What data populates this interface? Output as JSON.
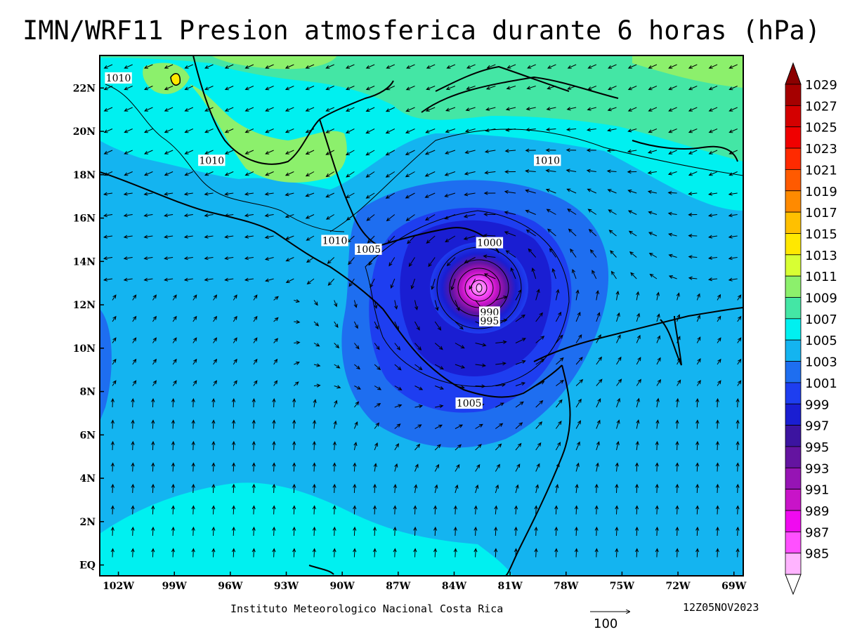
{
  "title": "IMN/WRF11 Presion atmosferica durante 6 horas (hPa)",
  "credit": "Instituto Meteorologico Nacional Costa Rica",
  "datestamp": "12Z05NOV2023",
  "vector_reference": "100",
  "axes": {
    "lon_labels": [
      "102W",
      "99W",
      "96W",
      "93W",
      "90W",
      "87W",
      "84W",
      "81W",
      "78W",
      "75W",
      "72W",
      "69W"
    ],
    "lon_values": [
      -102,
      -99,
      -96,
      -93,
      -90,
      -87,
      -84,
      -81,
      -78,
      -75,
      -72,
      -69
    ],
    "lat_labels": [
      "22N",
      "20N",
      "18N",
      "16N",
      "14N",
      "12N",
      "10N",
      "8N",
      "6N",
      "4N",
      "2N",
      "EQ"
    ],
    "lat_values": [
      22,
      20,
      18,
      16,
      14,
      12,
      10,
      8,
      6,
      4,
      2,
      0
    ],
    "lon_range": [
      -103.0,
      -68.5
    ],
    "lat_range": [
      -0.5,
      23.5
    ]
  },
  "colorbar": {
    "labels": [
      "1029",
      "1027",
      "1025",
      "1023",
      "1021",
      "1019",
      "1017",
      "1015",
      "1013",
      "1011",
      "1009",
      "1007",
      "1005",
      "1003",
      "1001",
      "999",
      "997",
      "995",
      "993",
      "991",
      "989",
      "987",
      "985"
    ],
    "colors": [
      "#a50000",
      "#d40000",
      "#f00000",
      "#ff2a00",
      "#ff5a00",
      "#ff8a00",
      "#ffc000",
      "#ffe800",
      "#d8ff33",
      "#8cf06c",
      "#44e6a5",
      "#00f0f0",
      "#14b4f0",
      "#1e6ef0",
      "#1e3ef0",
      "#1a1ed2",
      "#3c14a0",
      "#6414a0",
      "#9614b4",
      "#c814c8",
      "#f00af0",
      "#ff50ff",
      "#ffb4ff"
    ],
    "end_colors": [
      "#8b0000",
      "#ffffff"
    ]
  },
  "contour_labels": [
    {
      "text": "1010",
      "lon": -102.0,
      "lat": 22.4
    },
    {
      "text": "1010",
      "lon": -97.0,
      "lat": 18.6
    },
    {
      "text": "1010",
      "lon": -90.4,
      "lat": 14.9
    },
    {
      "text": "1005",
      "lon": -88.6,
      "lat": 14.5
    },
    {
      "text": "1010",
      "lon": -79.0,
      "lat": 18.6
    },
    {
      "text": "1000",
      "lon": -82.1,
      "lat": 14.8
    },
    {
      "text": "990",
      "lon": -82.1,
      "lat": 11.6
    },
    {
      "text": "995",
      "lon": -82.1,
      "lat": 11.2
    },
    {
      "text": "1005",
      "lon": -83.2,
      "lat": 7.4
    }
  ],
  "cyclone_center": {
    "lon": -82.0,
    "lat": 12.8,
    "min_pressure_hpa": 985
  }
}
